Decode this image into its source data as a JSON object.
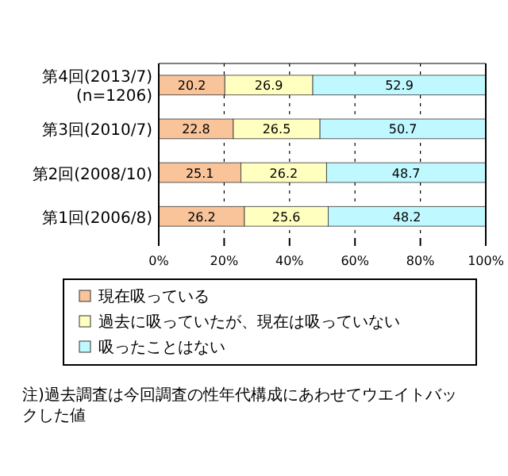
{
  "chart_data": {
    "type": "bar",
    "orientation": "horizontal",
    "stacked": true,
    "categories": [
      "第4回(2013/7)\n(n=1206)",
      "第3回(2010/7)",
      "第2回(2008/10)",
      "第1回(2006/8)"
    ],
    "series": [
      {
        "name": "現在吸っている",
        "color": "#f9c49a",
        "values": [
          20.2,
          22.8,
          25.1,
          26.2
        ]
      },
      {
        "name": "過去に吸っていたが、現在は吸っていない",
        "color": "#ffffc0",
        "values": [
          26.9,
          26.5,
          26.2,
          25.6
        ]
      },
      {
        "name": "吸ったことはない",
        "color": "#c0f8ff",
        "values": [
          52.9,
          50.7,
          48.7,
          48.2
        ]
      }
    ],
    "xlim": [
      0,
      100
    ],
    "xticks": [
      {
        "value": 0,
        "label": "0%"
      },
      {
        "value": 20,
        "label": "20%"
      },
      {
        "value": 40,
        "label": "40%"
      },
      {
        "value": 60,
        "label": "60%"
      },
      {
        "value": 80,
        "label": "80%"
      },
      {
        "value": 100,
        "label": "100%"
      }
    ],
    "grid": "x",
    "data_labels": true,
    "legend": "bottom",
    "annotations": [
      "注)過去調査は今回調査の性年代構成にあわせてウエイトバックした値"
    ]
  }
}
